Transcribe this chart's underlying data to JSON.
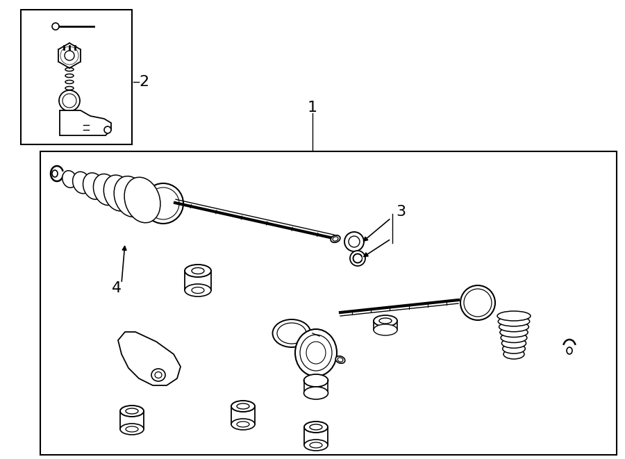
{
  "bg_color": "#ffffff",
  "line_color": "#000000",
  "lw": 1.3,
  "fig_width": 9.0,
  "fig_height": 6.61,
  "dpi": 100,
  "label_1": "1",
  "label_2": "2",
  "label_3": "3",
  "label_4": "4",
  "label_fontsize": 14
}
